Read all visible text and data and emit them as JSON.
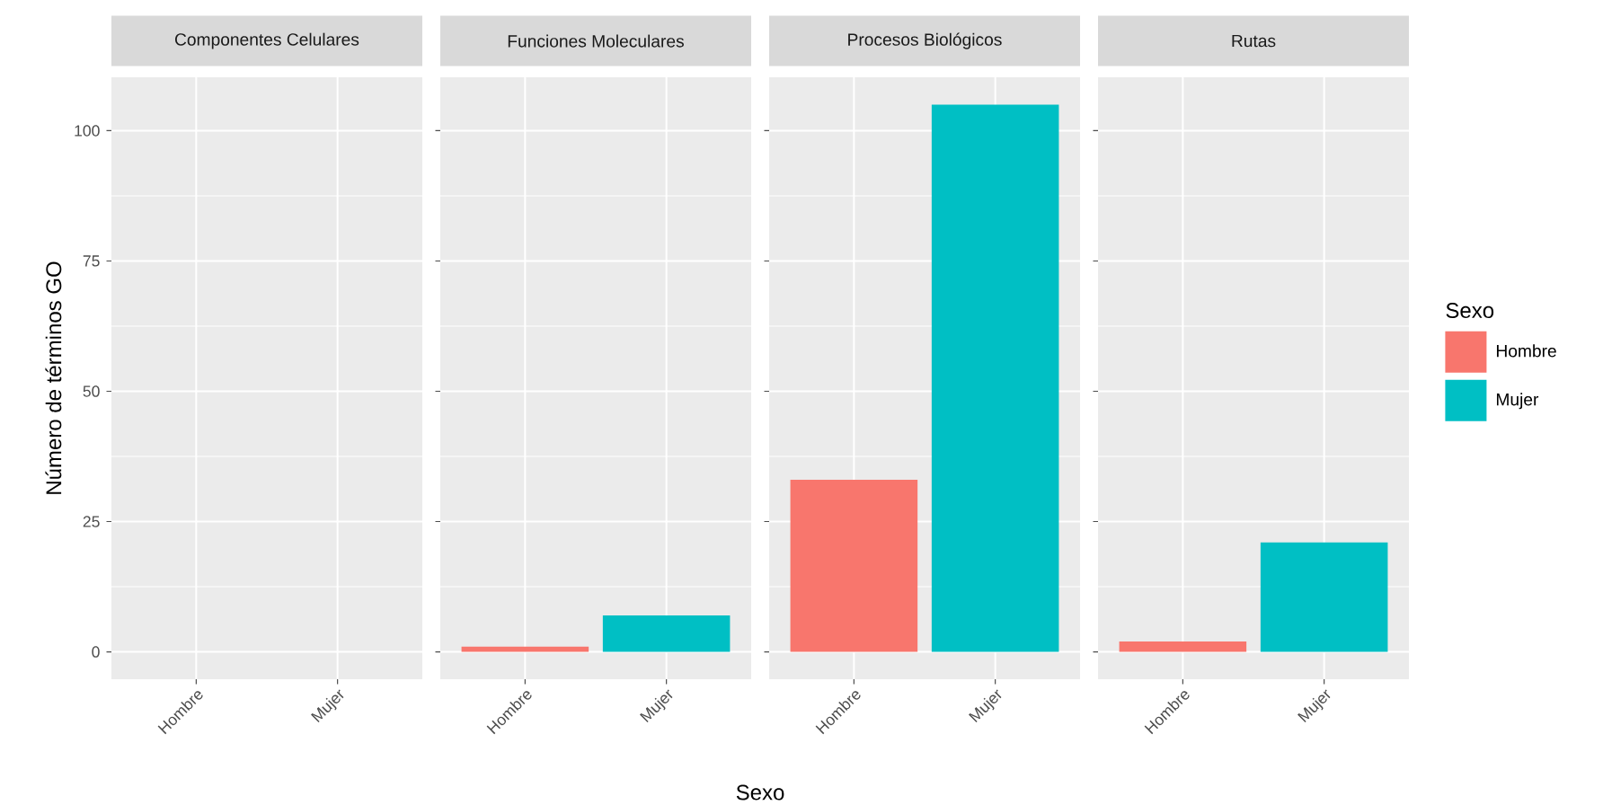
{
  "chart_data": [
    {
      "type": "bar",
      "title": "Componentes Celulares",
      "ylabel": "Número de términos GO",
      "categories": [
        "Hombre",
        "Mujer"
      ],
      "series": [
        {
          "color": "#f8766d",
          "values": [
            0,
            null
          ]
        },
        {
          "color": "#00bfc4",
          "values": [
            null,
            0
          ]
        }
      ],
      "ylim": [
        -5.25,
        110.25
      ],
      "yticks": [
        0,
        25,
        50,
        75,
        100
      ],
      "grid": true
    },
    {
      "type": "bar",
      "title": "Funciones Moleculares",
      "xlabel": "Sexo",
      "categories": [
        "Hombre",
        "Mujer"
      ],
      "series": [
        {
          "color": "#f8766d",
          "values": [
            1,
            null
          ]
        },
        {
          "color": "#00bfc4",
          "values": [
            null,
            7
          ]
        }
      ],
      "ylim": [
        -5.25,
        110.25
      ],
      "yticks": [
        0,
        25,
        50,
        75,
        100
      ],
      "grid": true,
      "tick_labels": "x"
    },
    {
      "type": "bar",
      "title": "Procesos Biológicos",
      "categories": [
        "Hombre",
        "Mujer"
      ],
      "series": [
        {
          "color": "#f8766d",
          "values": [
            33,
            null
          ]
        },
        {
          "color": "#00bfc4",
          "values": [
            null,
            105
          ]
        }
      ],
      "ylim": [
        -5.25,
        110.25
      ],
      "yticks": [
        0,
        25,
        50,
        75,
        100
      ],
      "grid": true,
      "tick_labels": "x"
    },
    {
      "type": "bar",
      "title": "Rutas",
      "categories": [
        "Hombre",
        "Mujer"
      ],
      "series": [
        {
          "name": "Hombre",
          "color": "#f8766d",
          "values": [
            2,
            null
          ]
        },
        {
          "name": "Mujer",
          "color": "#00bfc4",
          "values": [
            null,
            21
          ]
        }
      ],
      "ylim": [
        -5.25,
        110.25
      ],
      "yticks": [
        0,
        25,
        50,
        75,
        100
      ],
      "grid": true,
      "tick_labels": "x",
      "legend": "right",
      "legend_title": "Sexo"
    }
  ]
}
